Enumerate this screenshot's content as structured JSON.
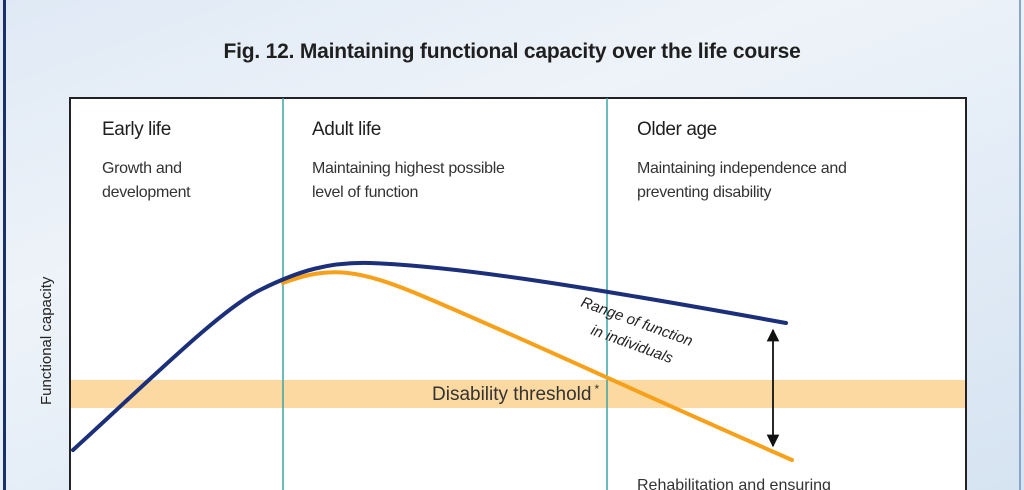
{
  "title": "Fig. 12. Maintaining functional capacity over the life course",
  "chart_data": {
    "type": "line",
    "title": "Fig. 12. Maintaining functional capacity over the life course",
    "ylabel": "Functional capacity",
    "xlabel": "",
    "stages": [
      {
        "title": "Early life",
        "description": "Growth and\ndevelopment"
      },
      {
        "title": "Adult life",
        "description": "Maintaining highest possible\nlevel of function"
      },
      {
        "title": "Older age",
        "description": "Maintaining independence and\npreventing disability"
      }
    ],
    "threshold": {
      "label": "Disability threshold",
      "marker": "*",
      "color": "#fcd9a0"
    },
    "range_annotation": {
      "line1": "Range of function",
      "line2": "in individuals"
    },
    "partial_text": "Rehabilitation and ensuring",
    "series": [
      {
        "color": "#1b2f7a"
      },
      {
        "color": "#f7a11a"
      }
    ]
  }
}
